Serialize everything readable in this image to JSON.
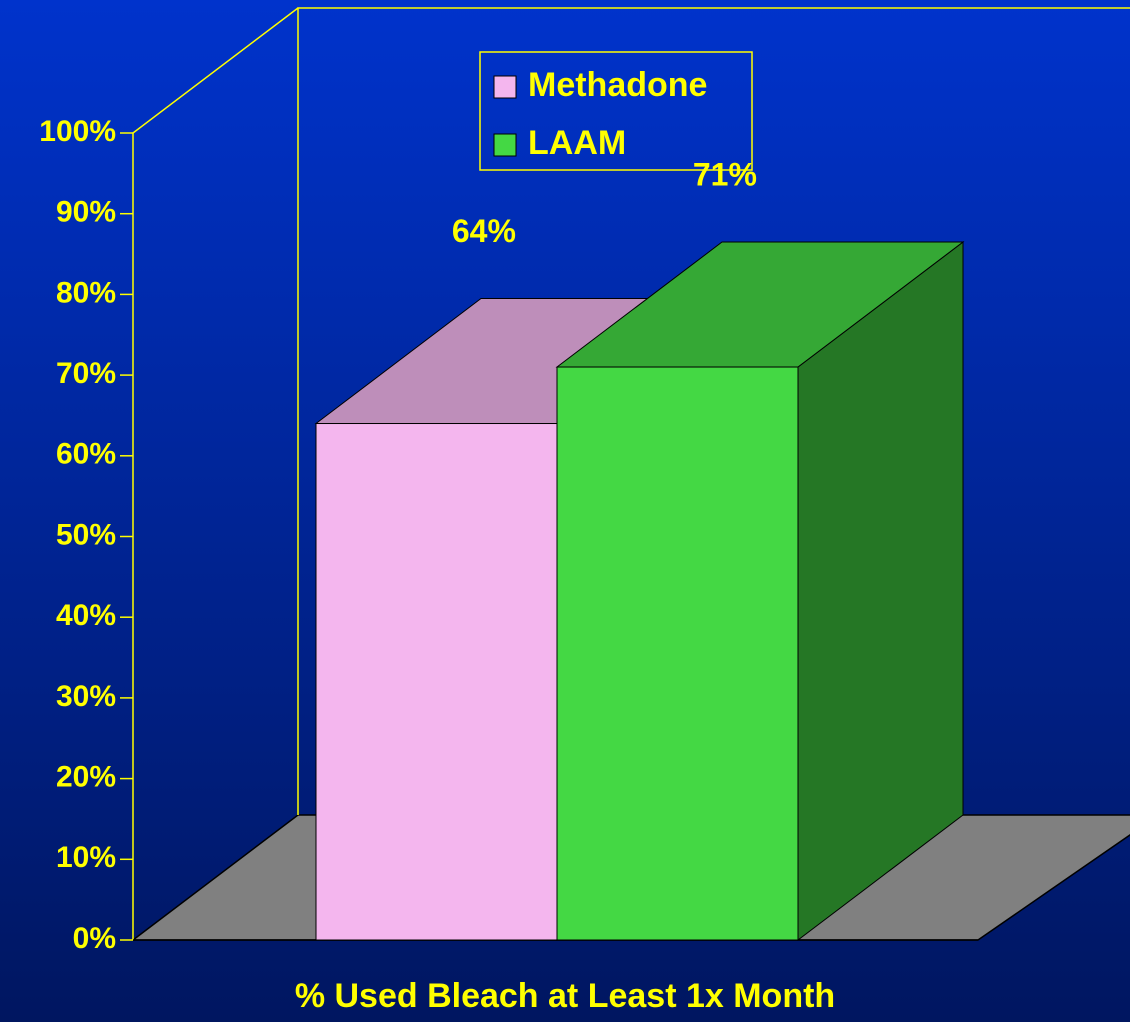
{
  "chart_data": {
    "type": "bar",
    "x_label": "% Used Bleach at Least 1x Month",
    "series": [
      {
        "name": "Methadone",
        "color": "#f4b6ee",
        "values": [
          64
        ],
        "value_labels": [
          "64%"
        ]
      },
      {
        "name": "LAAM",
        "color": "#44d844",
        "values": [
          71
        ],
        "value_labels": [
          "71%"
        ]
      }
    ],
    "ylim": [
      0,
      100
    ],
    "yticks": [
      {
        "value": 0,
        "label": "0%"
      },
      {
        "value": 10,
        "label": "10%"
      },
      {
        "value": 20,
        "label": "20%"
      },
      {
        "value": 30,
        "label": "30%"
      },
      {
        "value": 40,
        "label": "40%"
      },
      {
        "value": 50,
        "label": "50%"
      },
      {
        "value": 60,
        "label": "60%"
      },
      {
        "value": 70,
        "label": "70%"
      },
      {
        "value": 80,
        "label": "80%"
      },
      {
        "value": 90,
        "label": "90%"
      },
      {
        "value": 100,
        "label": "100%"
      }
    ],
    "legend": "top"
  }
}
